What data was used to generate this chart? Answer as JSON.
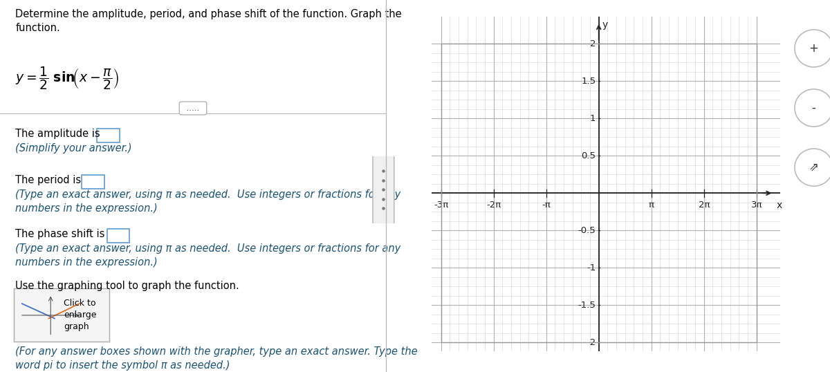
{
  "title_text": "Determine the amplitude, period, and phase shift of the function. Graph the\nfunction.",
  "amplitude_label": "The amplitude is",
  "amplitude_hint": "(Simplify your answer.)",
  "period_label": "The period is",
  "period_hint": "(Type an exact answer, using π as needed.  Use integers or fractions for any\nnumbers in the expression.)",
  "phase_label": "The phase shift is",
  "phase_hint": "(Type an exact answer, using π as needed.  Use integers or fractions for any\nnumbers in the expression.)",
  "graph_tool_label": "Use the graphing tool to graph the function.",
  "footer_text": "(For any answer boxes shown with the grapher, type an exact answer. Type the\nword pi to insert the symbol π as needed.)",
  "xlim": [
    -9.42477796,
    9.42477796
  ],
  "ylim": [
    -2,
    2
  ],
  "x_ticks_values": [
    -9.42477796,
    -6.28318531,
    -3.14159265,
    0,
    3.14159265,
    6.28318531,
    9.42477796
  ],
  "x_ticks_labels": [
    "-3π",
    "-2π",
    "-π",
    "",
    "π",
    "2π",
    "3π"
  ],
  "y_ticks_values": [
    -2,
    -1.5,
    -1,
    -0.5,
    0,
    0.5,
    1,
    1.5,
    2
  ],
  "y_ticks_labels": [
    "-2",
    "-1.5",
    "-1",
    "-0.5",
    "",
    "0.5",
    "1",
    "1.5",
    "2"
  ],
  "grid_minor_color": "#d8d8d8",
  "grid_major_color": "#b0b0b0",
  "axis_color": "#222222",
  "background_color": "#ffffff",
  "text_color_black": "#000000",
  "text_color_blue": "#1a5276",
  "box_color": "#5b9bd5",
  "divider_color": "#bbbbbb",
  "panel_split": 0.465
}
